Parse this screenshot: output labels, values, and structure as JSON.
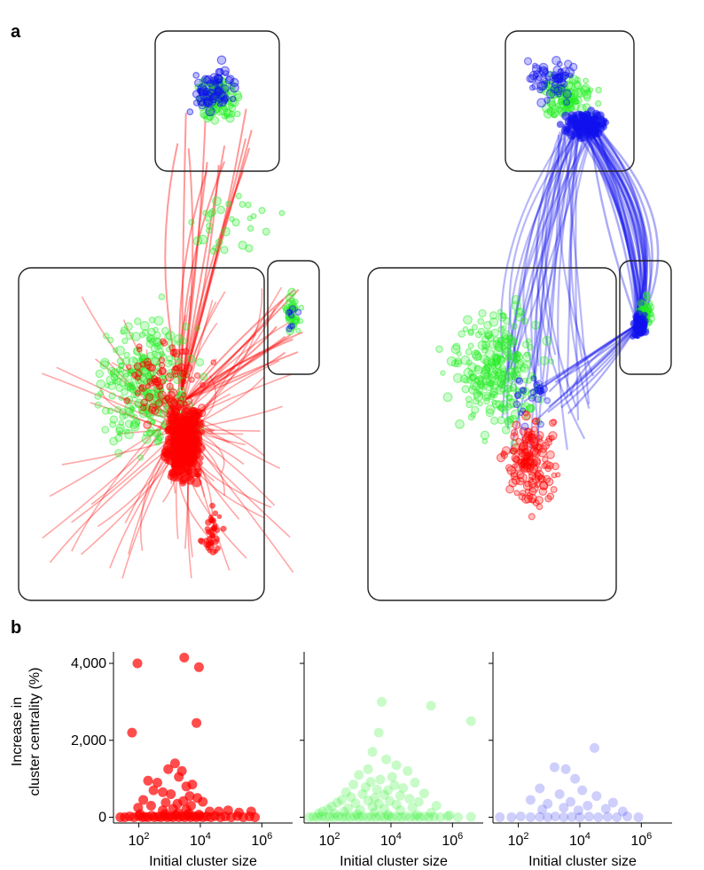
{
  "panel_a_label": "a",
  "panel_b_label": "b",
  "colors": {
    "red": "#ff0000",
    "green": "#22ee22",
    "blue": "#1111ee"
  },
  "chart_data": [
    {
      "type": "scatter",
      "xlabel": "Initial cluster size",
      "ylabel": "Increase in cluster centrality (%)",
      "x_scale": "log",
      "xlim": [
        15,
        10000000
      ],
      "ylim": [
        -150,
        4300
      ],
      "x_ticks": [
        100,
        10000,
        1000000
      ],
      "x_tick_labels": [
        {
          "base": "10",
          "exp": "2"
        },
        {
          "base": "10",
          "exp": "4"
        },
        {
          "base": "10",
          "exp": "6"
        }
      ],
      "y_ticks": [
        0,
        2000,
        4000
      ],
      "y_tick_labels": [
        "0",
        "2,000",
        "4,000"
      ],
      "color": "#ff0000",
      "opacity": 0.7,
      "points": [
        [
          90,
          4000
        ],
        [
          3000,
          4150
        ],
        [
          9000,
          3900
        ],
        [
          60,
          2200
        ],
        [
          7500,
          2450
        ],
        [
          1500,
          1400
        ],
        [
          2500,
          1200
        ],
        [
          2000,
          1050
        ],
        [
          900,
          1250
        ],
        [
          200,
          950
        ],
        [
          400,
          900
        ],
        [
          5500,
          850
        ],
        [
          3500,
          800
        ],
        [
          300,
          700
        ],
        [
          600,
          650
        ],
        [
          1100,
          600
        ],
        [
          4500,
          550
        ],
        [
          8000,
          500
        ],
        [
          140,
          450
        ],
        [
          2800,
          420
        ],
        [
          750,
          380
        ],
        [
          1800,
          350
        ],
        [
          12000,
          400
        ],
        [
          250,
          300
        ],
        [
          5000,
          300
        ],
        [
          95,
          250
        ],
        [
          1300,
          220
        ],
        [
          3500,
          200
        ],
        [
          600,
          180
        ],
        [
          20000,
          150
        ],
        [
          40000,
          150
        ],
        [
          80000,
          180
        ],
        [
          180000,
          120
        ],
        [
          450000,
          150
        ],
        [
          25,
          0
        ],
        [
          35,
          0
        ],
        [
          50,
          20
        ],
        [
          70,
          0
        ],
        [
          100,
          30
        ],
        [
          130,
          0
        ],
        [
          160,
          10
        ],
        [
          200,
          0
        ],
        [
          260,
          40
        ],
        [
          320,
          0
        ],
        [
          420,
          15
        ],
        [
          520,
          0
        ],
        [
          680,
          30
        ],
        [
          850,
          0
        ],
        [
          1050,
          20
        ],
        [
          1300,
          0
        ],
        [
          1600,
          50
        ],
        [
          2000,
          0
        ],
        [
          2500,
          30
        ],
        [
          3100,
          0
        ],
        [
          3900,
          40
        ],
        [
          4800,
          0
        ],
        [
          6000,
          25
        ],
        [
          7500,
          0
        ],
        [
          9500,
          30
        ],
        [
          12000,
          0
        ],
        [
          16000,
          20
        ],
        [
          22000,
          0
        ],
        [
          30000,
          30
        ],
        [
          45000,
          0
        ],
        [
          65000,
          20
        ],
        [
          100000,
          0
        ],
        [
          160000,
          30
        ],
        [
          250000,
          0
        ],
        [
          400000,
          20
        ],
        [
          600000,
          0
        ],
        [
          110,
          80
        ],
        [
          700,
          90
        ],
        [
          1900,
          110
        ],
        [
          4200,
          100
        ],
        [
          9000,
          70
        ]
      ]
    },
    {
      "type": "scatter",
      "xlabel": "Initial cluster size",
      "x_scale": "log",
      "xlim": [
        15,
        10000000
      ],
      "ylim": [
        -150,
        4300
      ],
      "x_ticks": [
        100,
        10000,
        1000000
      ],
      "x_tick_labels": [
        {
          "base": "10",
          "exp": "2"
        },
        {
          "base": "10",
          "exp": "4"
        },
        {
          "base": "10",
          "exp": "6"
        }
      ],
      "color": "#22ee22",
      "opacity": 0.25,
      "points": [
        [
          5000,
          3000
        ],
        [
          200000,
          2900
        ],
        [
          4000000,
          2500
        ],
        [
          4000,
          2200
        ],
        [
          2500,
          1700
        ],
        [
          7000,
          1500
        ],
        [
          15000,
          1350
        ],
        [
          1800,
          1250
        ],
        [
          35000,
          1200
        ],
        [
          900,
          1100
        ],
        [
          11000,
          1050
        ],
        [
          4500,
          980
        ],
        [
          2200,
          920
        ],
        [
          60000,
          900
        ],
        [
          600,
          850
        ],
        [
          13000,
          830
        ],
        [
          1500,
          780
        ],
        [
          25000,
          760
        ],
        [
          3500,
          720
        ],
        [
          8000,
          700
        ],
        [
          350,
          650
        ],
        [
          120000,
          620
        ],
        [
          1200,
          600
        ],
        [
          6000,
          580
        ],
        [
          20000,
          560
        ],
        [
          500,
          520
        ],
        [
          3000,
          500
        ],
        [
          40000,
          480
        ],
        [
          250,
          450
        ],
        [
          1800,
          430
        ],
        [
          9000,
          420
        ],
        [
          80000,
          400
        ],
        [
          180,
          380
        ],
        [
          700,
          360
        ],
        [
          4000,
          350
        ],
        [
          15000,
          330
        ],
        [
          300000,
          300
        ],
        [
          120,
          280
        ],
        [
          2500,
          270
        ],
        [
          50000,
          250
        ],
        [
          400,
          230
        ],
        [
          6000,
          220
        ],
        [
          90,
          200
        ],
        [
          1000,
          190
        ],
        [
          20000,
          180
        ],
        [
          60,
          150
        ],
        [
          300,
          140
        ],
        [
          3000,
          130
        ],
        [
          200000,
          120
        ],
        [
          45,
          100
        ],
        [
          150,
          90
        ],
        [
          800,
          80
        ],
        [
          8000,
          70
        ],
        [
          70000,
          60
        ],
        [
          800000,
          50
        ],
        [
          22,
          0
        ],
        [
          30,
          10
        ],
        [
          40,
          0
        ],
        [
          55,
          20
        ],
        [
          75,
          0
        ],
        [
          100,
          10
        ],
        [
          140,
          0
        ],
        [
          190,
          20
        ],
        [
          260,
          0
        ],
        [
          350,
          10
        ],
        [
          480,
          0
        ],
        [
          650,
          20
        ],
        [
          900,
          0
        ],
        [
          1200,
          15
        ],
        [
          1700,
          0
        ],
        [
          2300,
          10
        ],
        [
          3200,
          0
        ],
        [
          4400,
          20
        ],
        [
          6000,
          0
        ],
        [
          8300,
          15
        ],
        [
          11000,
          0
        ],
        [
          16000,
          10
        ],
        [
          22000,
          0
        ],
        [
          30000,
          20
        ],
        [
          42000,
          0
        ],
        [
          60000,
          10
        ],
        [
          85000,
          0
        ],
        [
          120000,
          15
        ],
        [
          170000,
          0
        ],
        [
          250000,
          10
        ],
        [
          400000,
          0
        ],
        [
          700000,
          20
        ],
        [
          1500000,
          0
        ],
        [
          4000000,
          10
        ]
      ]
    },
    {
      "type": "scatter",
      "xlabel": "Initial cluster size",
      "x_scale": "log",
      "xlim": [
        15,
        10000000
      ],
      "ylim": [
        -150,
        4300
      ],
      "x_ticks": [
        100,
        10000,
        1000000
      ],
      "x_tick_labels": [
        {
          "base": "10",
          "exp": "2"
        },
        {
          "base": "10",
          "exp": "4"
        },
        {
          "base": "10",
          "exp": "6"
        }
      ],
      "color": "#1111ee",
      "opacity": 0.2,
      "points": [
        [
          30000,
          1800
        ],
        [
          1500,
          1300
        ],
        [
          3500,
          1250
        ],
        [
          7000,
          1000
        ],
        [
          500,
          750
        ],
        [
          12000,
          700
        ],
        [
          2200,
          600
        ],
        [
          35000,
          550
        ],
        [
          250,
          450
        ],
        [
          5000,
          400
        ],
        [
          120000,
          380
        ],
        [
          900,
          350
        ],
        [
          18000,
          300
        ],
        [
          3000,
          250
        ],
        [
          70000,
          220
        ],
        [
          600,
          200
        ],
        [
          9000,
          180
        ],
        [
          250000,
          150
        ],
        [
          25,
          0
        ],
        [
          60,
          0
        ],
        [
          120,
          20
        ],
        [
          250,
          0
        ],
        [
          500,
          10
        ],
        [
          900,
          0
        ],
        [
          1600,
          20
        ],
        [
          3000,
          0
        ],
        [
          5500,
          10
        ],
        [
          10000,
          0
        ],
        [
          20000,
          15
        ],
        [
          40000,
          0
        ],
        [
          80000,
          10
        ],
        [
          160000,
          0
        ],
        [
          350000,
          20
        ],
        [
          800000,
          0
        ]
      ]
    }
  ]
}
